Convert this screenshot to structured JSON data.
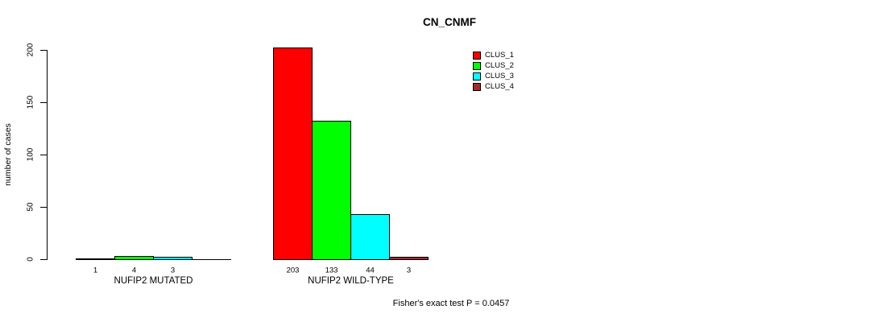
{
  "title": "CN_CNMF",
  "y_axis": {
    "label": "number of cases",
    "ticks": [
      0,
      50,
      100,
      150,
      200
    ]
  },
  "legend": {
    "items": [
      {
        "label": "CLUS_1",
        "color": "#FF0000"
      },
      {
        "label": "CLUS_2",
        "color": "#00FF00"
      },
      {
        "label": "CLUS_3",
        "color": "#00FFFF"
      },
      {
        "label": "CLUS_4",
        "color": "#A52A2A"
      }
    ]
  },
  "footer": "Fisher's exact test P = 0.0457",
  "chart_data": {
    "type": "bar",
    "title": "CN_CNMF",
    "xlabel": "",
    "ylabel": "number of cases",
    "ylim": [
      0,
      200
    ],
    "yticks": [
      0,
      50,
      100,
      150,
      200
    ],
    "grid": false,
    "legend_position": "top-right",
    "series": [
      "CLUS_1",
      "CLUS_2",
      "CLUS_3",
      "CLUS_4"
    ],
    "colors": [
      "#FF0000",
      "#00FF00",
      "#00FFFF",
      "#A52A2A"
    ],
    "groups": [
      {
        "label": "NUFIP2 MUTATED",
        "values": [
          1,
          4,
          3,
          0
        ],
        "bar_labels": [
          "1",
          "4",
          "3",
          ""
        ]
      },
      {
        "label": "NUFIP2 WILD-TYPE",
        "values": [
          203,
          133,
          44,
          3
        ],
        "bar_labels": [
          "203",
          "133",
          "44",
          "3"
        ]
      }
    ],
    "annotation": "Fisher's exact test P = 0.0457"
  }
}
